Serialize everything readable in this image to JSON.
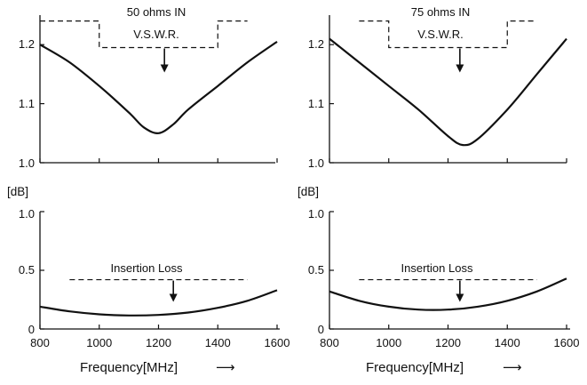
{
  "chart_data": [
    {
      "id": "vswr-50",
      "type": "line",
      "annotation_line1": "50 ohms IN",
      "annotation_line2": "V.S.W.R.",
      "x": [
        800,
        900,
        1000,
        1100,
        1150,
        1200,
        1250,
        1300,
        1400,
        1500,
        1600
      ],
      "y": [
        1.2,
        1.17,
        1.13,
        1.085,
        1.06,
        1.05,
        1.065,
        1.09,
        1.13,
        1.17,
        1.205
      ],
      "xlim": [
        800,
        1600
      ],
      "ylim": [
        1.0,
        1.25
      ],
      "yticks": [
        "1.0",
        "1.1",
        "1.2"
      ],
      "ytick_values": [
        1.0,
        1.1,
        1.2
      ],
      "xticks": [
        800,
        1000,
        1200,
        1400,
        1600
      ],
      "spec_limit": {
        "low_x": [
          800,
          1000
        ],
        "low_y": 1.24,
        "high_x": [
          1000,
          1400
        ],
        "high_y": 1.195,
        "out_x": [
          1400,
          1500
        ],
        "out_y": 1.24
      },
      "arrow_x": 1220
    },
    {
      "id": "vswr-75",
      "type": "line",
      "annotation_line1": "75 ohms IN",
      "annotation_line2": "V.S.W.R.",
      "x": [
        800,
        900,
        1000,
        1100,
        1200,
        1250,
        1300,
        1400,
        1500,
        1600
      ],
      "y": [
        1.21,
        1.17,
        1.13,
        1.09,
        1.045,
        1.03,
        1.04,
        1.09,
        1.15,
        1.21
      ],
      "xlim": [
        800,
        1600
      ],
      "ylim": [
        1.0,
        1.25
      ],
      "yticks": [
        "1.0",
        "1.1",
        "1.2"
      ],
      "ytick_values": [
        1.0,
        1.1,
        1.2
      ],
      "xticks": [
        800,
        1000,
        1200,
        1400,
        1600
      ],
      "spec_limit": {
        "low_x": [
          900,
          1000
        ],
        "low_y": 1.24,
        "high_x": [
          1000,
          1400
        ],
        "high_y": 1.195,
        "out_x": [
          1400,
          1500
        ],
        "out_y": 1.24
      },
      "arrow_x": 1240
    },
    {
      "id": "loss-50",
      "type": "line",
      "annotation_line1": "Insertion Loss",
      "unit_label": "[dB]",
      "x": [
        800,
        900,
        1000,
        1100,
        1200,
        1300,
        1400,
        1500,
        1600
      ],
      "y": [
        0.19,
        0.15,
        0.125,
        0.115,
        0.12,
        0.14,
        0.18,
        0.24,
        0.33
      ],
      "xlim": [
        800,
        1600
      ],
      "ylim": [
        0,
        1.0
      ],
      "yticks": [
        "0",
        "0.5",
        "1.0"
      ],
      "ytick_values": [
        0,
        0.5,
        1.0
      ],
      "xticks": [
        800,
        1000,
        1200,
        1400,
        1600
      ],
      "limit_y": 0.42,
      "limit_x": [
        900,
        1500
      ],
      "arrow_x": 1250
    },
    {
      "id": "loss-75",
      "type": "line",
      "annotation_line1": "Insertion Loss",
      "unit_label": "[dB]",
      "x": [
        800,
        900,
        1000,
        1100,
        1200,
        1300,
        1400,
        1500,
        1600
      ],
      "y": [
        0.32,
        0.24,
        0.19,
        0.165,
        0.165,
        0.19,
        0.24,
        0.32,
        0.43
      ],
      "xlim": [
        800,
        1600
      ],
      "ylim": [
        0,
        1.0
      ],
      "yticks": [
        "0",
        "0.5",
        "1.0"
      ],
      "ytick_values": [
        0,
        0.5,
        1.0
      ],
      "xticks": [
        800,
        1000,
        1200,
        1400,
        1600
      ],
      "limit_y": 0.42,
      "limit_x": [
        900,
        1500
      ],
      "arrow_x": 1240
    }
  ],
  "xaxis_title": "Frequency[MHz]",
  "xaxis_arrow": "⟶",
  "colors": {
    "ink": "#111111",
    "background": "#ffffff"
  }
}
